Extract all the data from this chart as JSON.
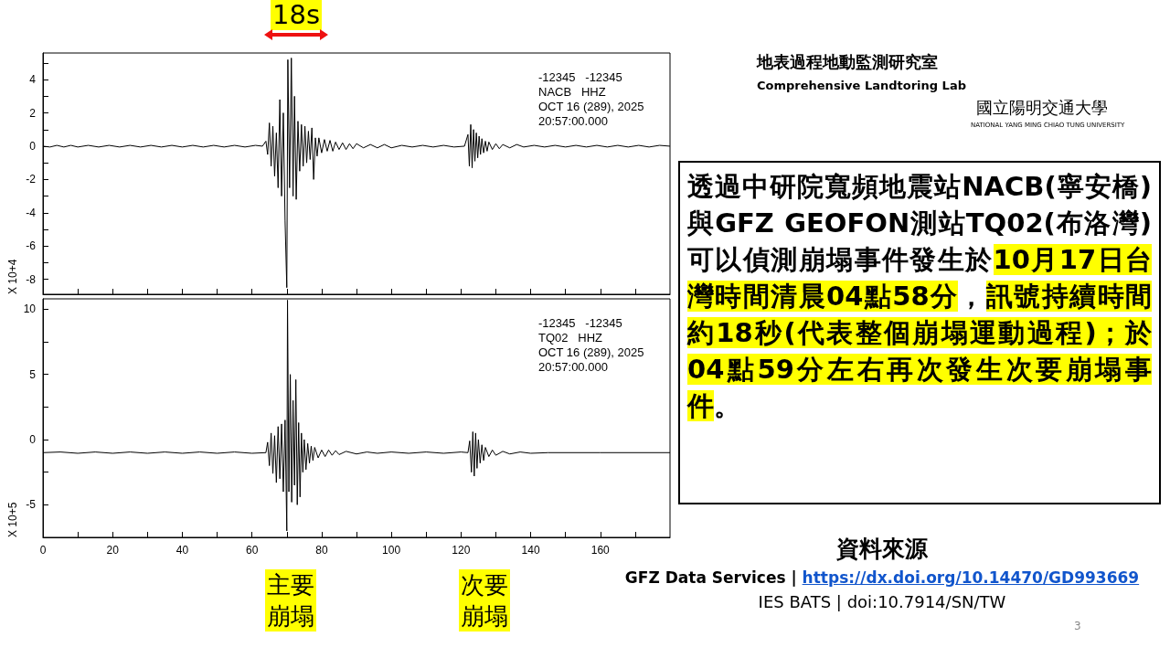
{
  "chart_data": [
    {
      "type": "line",
      "color": "#000000",
      "ylabel": "X 10+4",
      "tick_labels": "y",
      "xlim": [
        0,
        180
      ],
      "ylim": [
        -8.9,
        5.6
      ],
      "xticks": [
        0,
        {
          "value": 10,
          "label": null
        },
        20,
        {
          "value": 30,
          "label": null
        },
        40,
        {
          "value": 50,
          "label": null
        },
        60,
        {
          "value": 70,
          "label": null
        },
        80,
        {
          "value": 90,
          "label": null
        },
        100,
        {
          "value": 110,
          "label": null
        },
        120,
        {
          "value": 130,
          "label": null
        },
        140,
        {
          "value": 150,
          "label": null
        },
        160,
        {
          "value": 170,
          "label": null
        }
      ],
      "yticks": [
        -8,
        {
          "value": -7,
          "label": null
        },
        -6,
        {
          "value": -5,
          "label": null
        },
        -4,
        {
          "value": -3,
          "label": null
        },
        -2,
        {
          "value": -1,
          "label": null
        },
        0,
        {
          "value": 1,
          "label": null
        },
        2,
        {
          "value": 3,
          "label": null
        },
        4,
        {
          "value": 5,
          "label": null
        }
      ],
      "annotations": [
        "-12345   -12345",
        "NACB   HHZ",
        "OCT 16 (289), 2025",
        "20:57:00.000",
        "18s"
      ],
      "x": [
        0,
        2,
        4,
        6,
        8,
        10,
        13,
        16,
        19,
        22,
        25,
        28,
        31,
        34,
        37,
        40,
        43,
        46,
        49,
        52,
        55,
        58,
        61,
        63,
        64,
        64.5,
        65,
        65.5,
        66,
        66.5,
        67,
        67.5,
        68,
        68.5,
        69,
        69.5,
        70,
        70.3,
        70.8,
        71.3,
        71.8,
        72.2,
        72.7,
        73.2,
        73.7,
        74.2,
        74.7,
        75.2,
        75.7,
        76.2,
        76.7,
        77.2,
        77.7,
        78.2,
        78.7,
        79.2,
        80,
        80.8,
        81.6,
        82.4,
        83.2,
        84,
        85,
        86,
        87,
        88,
        89,
        90,
        92,
        94,
        96,
        98,
        100,
        103,
        106,
        109,
        112,
        115,
        118,
        121,
        122,
        122.4,
        122.8,
        123.2,
        123.6,
        124,
        124.4,
        124.8,
        125.2,
        125.6,
        126,
        126.5,
        127,
        127.5,
        128,
        129,
        130,
        131,
        132,
        134,
        136,
        138,
        141,
        144,
        147,
        150,
        153,
        156,
        159,
        162,
        165,
        168,
        171,
        174,
        177,
        180
      ],
      "values": [
        0,
        -0.05,
        0.05,
        -0.05,
        0.05,
        -0.05,
        0.05,
        -0.05,
        0.05,
        -0.05,
        0.05,
        -0.05,
        0.05,
        -0.05,
        0.05,
        -0.05,
        0.05,
        -0.05,
        0.05,
        -0.05,
        0.05,
        -0.05,
        0.05,
        0,
        0.3,
        -0.5,
        1.4,
        -1.2,
        1.2,
        -1.8,
        0.8,
        -2.5,
        2.8,
        -3,
        2,
        -4.5,
        -8.5,
        5.2,
        -2.5,
        5.3,
        -3,
        3,
        -3.2,
        1.5,
        -1.5,
        1.3,
        -1.2,
        1.2,
        -1,
        0.9,
        -0.8,
        1.1,
        -2,
        0.5,
        -0.6,
        0.5,
        -0.4,
        0.4,
        -0.3,
        0.35,
        -0.3,
        0.25,
        -0.2,
        0.2,
        -0.2,
        0.15,
        -0.15,
        0.15,
        -0.1,
        0.1,
        -0.1,
        0.1,
        -0.1,
        0.05,
        -0.05,
        0.05,
        -0.05,
        0.05,
        -0.05,
        0,
        0.7,
        -1.2,
        1.3,
        -1.3,
        1,
        -0.9,
        0.8,
        -0.7,
        0.6,
        -0.5,
        0.45,
        -0.4,
        0.3,
        -0.3,
        0.25,
        -0.2,
        0.15,
        -0.15,
        0.1,
        -0.1,
        0.1,
        -0.05,
        0.05,
        -0.05,
        0.05,
        -0.05,
        0.05,
        -0.05,
        0.05,
        -0.05,
        0.05,
        -0.05,
        0.05,
        -0.05,
        0.05,
        0
      ]
    },
    {
      "type": "line",
      "color": "#000000",
      "ylabel": "X 10+5",
      "xlim": [
        0,
        180
      ],
      "ylim": [
        -7.5,
        10.8
      ],
      "xticks": [
        0,
        {
          "value": 10,
          "label": null
        },
        20,
        {
          "value": 30,
          "label": null
        },
        40,
        {
          "value": 50,
          "label": null
        },
        60,
        {
          "value": 70,
          "label": null
        },
        80,
        {
          "value": 90,
          "label": null
        },
        100,
        {
          "value": 110,
          "label": null
        },
        120,
        {
          "value": 130,
          "label": null
        },
        140,
        {
          "value": 150,
          "label": null
        },
        160,
        {
          "value": 170,
          "label": null
        }
      ],
      "yticks": [
        -5,
        {
          "value": -2.5,
          "label": null
        },
        0,
        {
          "value": 2.5,
          "label": null
        },
        5,
        {
          "value": 7.5,
          "label": null
        },
        10
      ],
      "annotations": [
        "-12345   -12345",
        "TQ02   HHZ",
        "OCT 16 (289), 2025",
        "20:57:00.000",
        "主要崩塌",
        "次要崩塌"
      ],
      "x": [
        0,
        5,
        10,
        15,
        20,
        25,
        30,
        35,
        40,
        45,
        50,
        55,
        60,
        64,
        64.5,
        65,
        65.5,
        66,
        66.5,
        67,
        67.5,
        68,
        68.5,
        69,
        69.5,
        70,
        70.2,
        70.6,
        71,
        71.4,
        71.8,
        72.2,
        72.6,
        73,
        73.4,
        73.8,
        74.2,
        74.6,
        75,
        75.5,
        76,
        76.5,
        77,
        77.5,
        78,
        79,
        80,
        81,
        82,
        83,
        84,
        85,
        87,
        90,
        93,
        96,
        100,
        105,
        110,
        115,
        120,
        122,
        122.5,
        123,
        123.4,
        123.8,
        124.2,
        124.6,
        125,
        125.5,
        126,
        126.5,
        127,
        128,
        129,
        130,
        132,
        134,
        137,
        140,
        145,
        160,
        180
      ],
      "values": [
        -1,
        -0.95,
        -1.05,
        -0.95,
        -1.05,
        -0.95,
        -1.05,
        -0.95,
        -1.05,
        -0.95,
        -1.05,
        -0.95,
        -1.05,
        -1,
        -0.2,
        -2,
        0.5,
        -2.6,
        0.3,
        -3.3,
        1,
        -3,
        1.2,
        -4,
        1.5,
        -7,
        10.7,
        -4,
        5,
        -4.8,
        3,
        -3.5,
        4.6,
        -5,
        1.3,
        -4.4,
        0.5,
        -2.5,
        0,
        -2.3,
        -0.3,
        -1.8,
        -0.5,
        -1.6,
        -0.6,
        -1.4,
        -0.8,
        -1.3,
        -0.8,
        -1.2,
        -0.85,
        -1.15,
        -0.9,
        -1.1,
        -0.95,
        -1.05,
        -0.95,
        -1.05,
        -0.95,
        -1.05,
        -0.95,
        -1,
        -0.1,
        -2.5,
        0.6,
        -2.8,
        0.5,
        -2.2,
        0,
        -1.8,
        -0.4,
        -1.6,
        -0.6,
        -1.3,
        -0.8,
        -1.2,
        -0.9,
        -1.1,
        -0.95,
        -1.05,
        -1,
        -1,
        -1
      ]
    },
    {
      "type": "other",
      "annotations": [
        "地表過程地動監測研究室",
        "Comprehensive Landtoring Lab",
        "國立陽明交通大學",
        "NATIONAL YANG MING CHIAO TUNG UNIVERSITY",
        "透過中研院寬頻地震站NACB(寧安橋)與GFZ GEOFON測站TQ02(布洛灣)可以偵測崩塌事件發生於",
        "10月17日台灣時間清晨04點58分",
        "，",
        "訊號持續時間約18秒(代表整個崩塌運動過程)；於04點59分左右再次發生次要崩塌事件",
        "。",
        "資料來源",
        "GFZ Data Services | ",
        "https://dx.doi.org/10.14470/GD993669",
        "IES BATS | doi:10.7914/SN/TW",
        "3"
      ]
    }
  ]
}
